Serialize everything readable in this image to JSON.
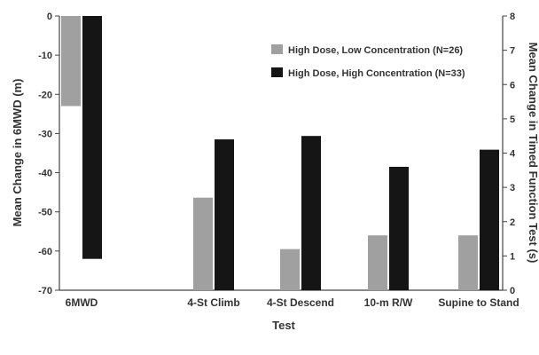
{
  "chart_data": {
    "type": "bar",
    "categories": [
      "6MWD",
      "4-St Climb",
      "4-St Descend",
      "10-m R/W",
      "Supine to Stand"
    ],
    "xlabel": "Test",
    "ylabel_left": "Mean Change in 6MWD (m)",
    "ylabel_right": "Mean Change in Timed Function Test (s)",
    "ylim_left": [
      -70,
      0
    ],
    "ylim_right": [
      0,
      8
    ],
    "yticks_left": [
      "0",
      "-10",
      "-20",
      "-30",
      "-40",
      "-50",
      "-60",
      "-70"
    ],
    "yticks_right": [
      "0",
      "1",
      "2",
      "3",
      "4",
      "5",
      "6",
      "7",
      "8"
    ],
    "grid": false,
    "legend_position": "top-right",
    "series": [
      {
        "name": "High Dose, Low Concentration (N=26)",
        "color": "#a0a0a0",
        "values": [
          -23,
          2.7,
          1.2,
          1.6,
          1.6
        ],
        "axis": [
          "left",
          "right",
          "right",
          "right",
          "right"
        ]
      },
      {
        "name": "High Dose, High Concentration (N=33)",
        "color": "#151515",
        "values": [
          -62,
          4.4,
          4.5,
          3.6,
          4.1
        ],
        "axis": [
          "left",
          "right",
          "right",
          "right",
          "right"
        ]
      }
    ]
  }
}
